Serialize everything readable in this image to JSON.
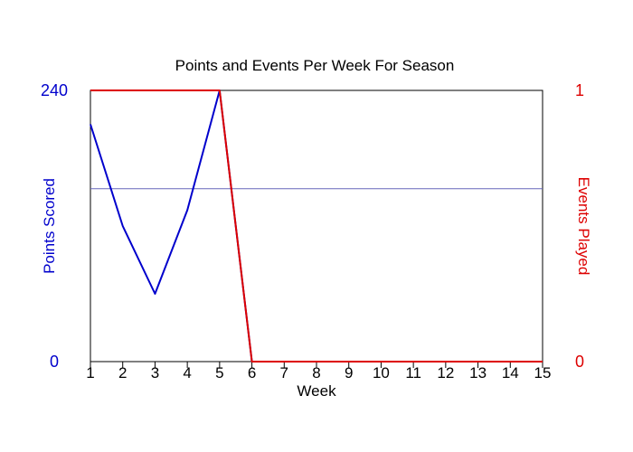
{
  "chart_data": {
    "type": "line",
    "title": "Points and Events Per Week For Season",
    "xlabel": "Week",
    "x": [
      1,
      2,
      3,
      4,
      5,
      6,
      7,
      8,
      9,
      10,
      11,
      12,
      13,
      14,
      15
    ],
    "xlim": [
      1,
      15
    ],
    "grid": false,
    "series": [
      {
        "name": "Points Scored",
        "axis": "left",
        "color": "#0000CC",
        "values": [
          210,
          120,
          60,
          134,
          240,
          0,
          0,
          0,
          0,
          0,
          0,
          0,
          0,
          0,
          0
        ]
      },
      {
        "name": "Events Played",
        "axis": "right",
        "color": "#DD0000",
        "values": [
          1,
          1,
          1,
          1,
          1,
          0,
          0,
          0,
          0,
          0,
          0,
          0,
          0,
          0,
          0
        ]
      }
    ],
    "y_left": {
      "label": "Points Scored",
      "range": [
        0,
        240
      ],
      "tick_labels": [
        "0",
        "240"
      ],
      "color": "#0000CC"
    },
    "y_right": {
      "label": "Events Played",
      "range": [
        0,
        1
      ],
      "tick_labels": [
        "0",
        "1"
      ],
      "color": "#DD0000"
    },
    "reference_line": {
      "axis": "left",
      "value": 153,
      "color": "#6666BB"
    }
  }
}
